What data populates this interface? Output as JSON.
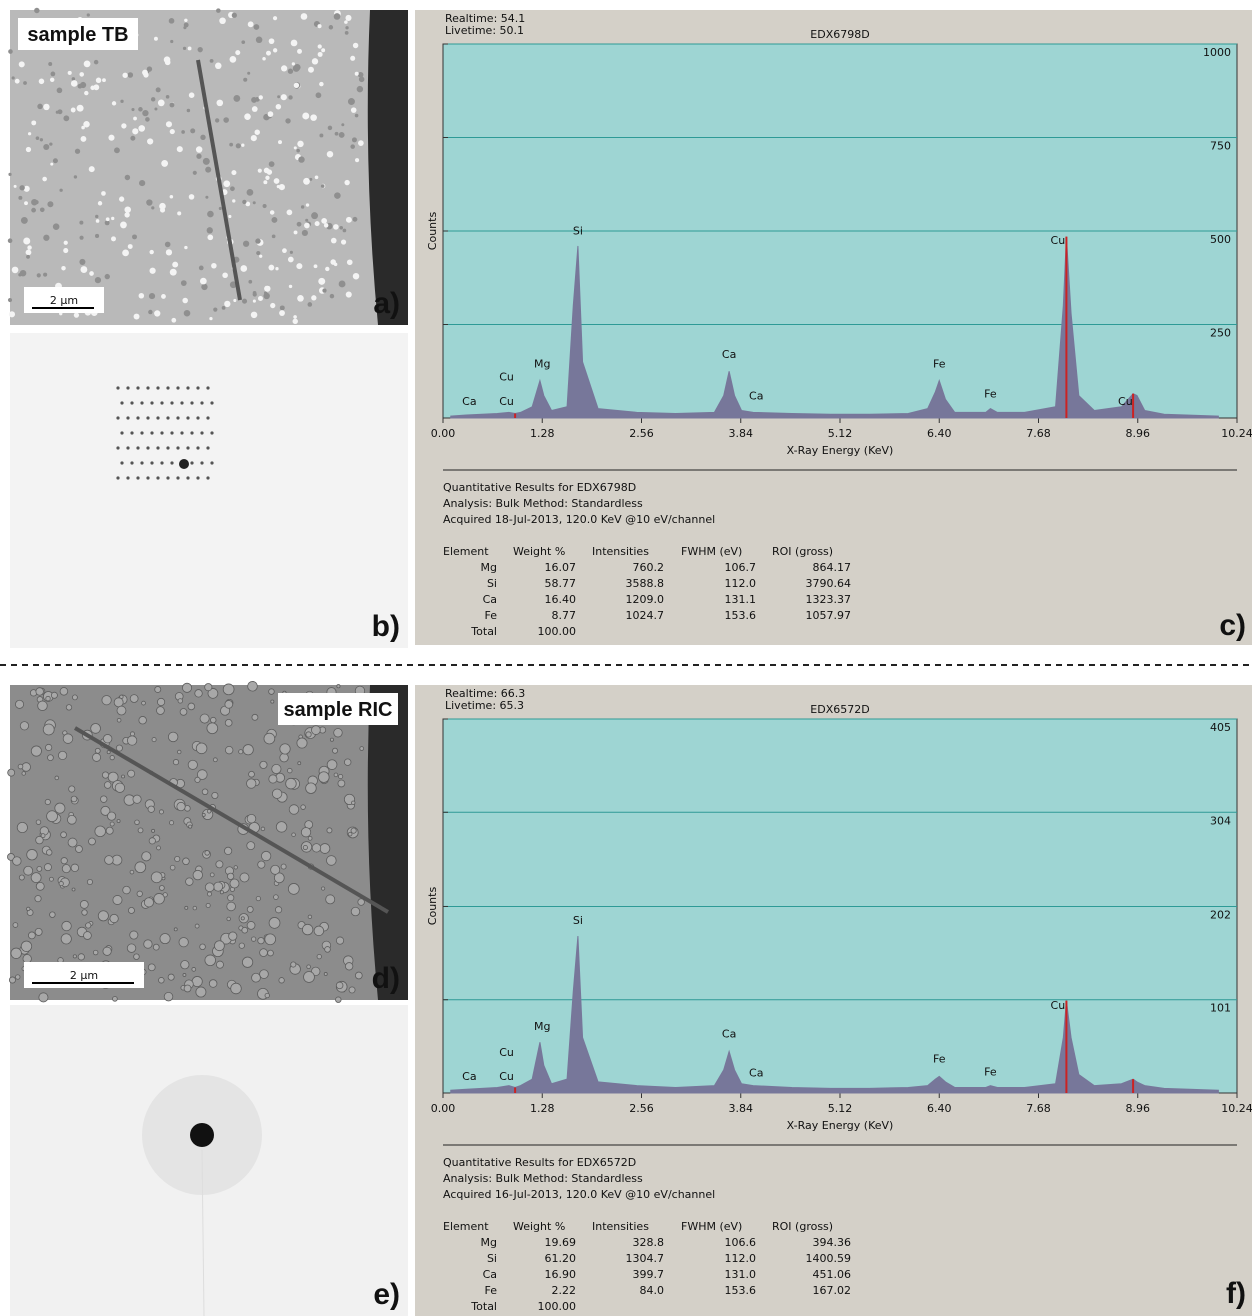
{
  "panels": [
    {
      "caption": "sample TB",
      "scale_bar": "2 µm",
      "label": "a)"
    },
    {
      "label": "b)"
    },
    {
      "caption": "sample RIC",
      "scale_bar": "2 µm",
      "label": "d)"
    },
    {
      "label": "e)"
    }
  ],
  "chart_data": [
    {
      "type": "line",
      "header": [
        "Realtime: 54.1",
        "Livetime: 50.1"
      ],
      "title": "EDX6798D",
      "xlabel": "X-Ray Energy (KeV)",
      "ylabel": "Counts",
      "panel_label": "c)",
      "xlim": [
        0,
        10.24
      ],
      "ylim": [
        0,
        1000
      ],
      "xticks": [
        {
          "value": 0,
          "label": "0.00"
        },
        {
          "value": 1.28,
          "label": "1.28"
        },
        {
          "value": 2.56,
          "label": "2.56"
        },
        {
          "value": 3.84,
          "label": "3.84"
        },
        {
          "value": 5.12,
          "label": "5.12"
        },
        {
          "value": 6.4,
          "label": "6.40"
        },
        {
          "value": 7.68,
          "label": "7.68"
        },
        {
          "value": 8.96,
          "label": "8.96"
        },
        {
          "value": 10.24,
          "label": "10.24"
        }
      ],
      "yticks": [
        250,
        500,
        750,
        1000
      ],
      "grid": true,
      "color": "#77779a",
      "marker_color": "#cc2222",
      "x": [
        0.1,
        0.3,
        0.5,
        0.7,
        0.85,
        0.93,
        1.0,
        1.15,
        1.25,
        1.3,
        1.4,
        1.6,
        1.68,
        1.74,
        1.8,
        2.0,
        2.5,
        3.0,
        3.5,
        3.62,
        3.69,
        3.76,
        3.85,
        4.0,
        4.5,
        5.0,
        5.5,
        6.0,
        6.25,
        6.35,
        6.4,
        6.48,
        6.6,
        7.0,
        7.06,
        7.15,
        7.5,
        7.9,
        8.0,
        8.04,
        8.1,
        8.2,
        8.4,
        8.75,
        8.9,
        8.95,
        9.05,
        9.3,
        10.0
      ],
      "values": [
        5,
        8,
        10,
        12,
        15,
        12,
        15,
        30,
        100,
        60,
        20,
        30,
        300,
        460,
        150,
        25,
        15,
        12,
        15,
        60,
        125,
        60,
        20,
        15,
        12,
        10,
        10,
        12,
        25,
        70,
        100,
        50,
        15,
        15,
        25,
        15,
        15,
        30,
        300,
        485,
        280,
        60,
        20,
        30,
        65,
        60,
        20,
        10,
        5
      ],
      "markers": [
        0.93,
        8.04,
        8.9
      ],
      "peak_labels": [
        {
          "text": "Ca",
          "x": 0.34,
          "y": 35
        },
        {
          "text": "Cu",
          "x": 0.82,
          "y": 35
        },
        {
          "text": "Cu",
          "x": 0.82,
          "y": 100
        },
        {
          "text": "Mg",
          "x": 1.28,
          "y": 135
        },
        {
          "text": "Si",
          "x": 1.74,
          "y": 490
        },
        {
          "text": "Ca",
          "x": 3.69,
          "y": 160
        },
        {
          "text": "Ca",
          "x": 4.04,
          "y": 50
        },
        {
          "text": "Fe",
          "x": 6.4,
          "y": 135
        },
        {
          "text": "Fe",
          "x": 7.06,
          "y": 55
        },
        {
          "text": "Cu",
          "x": 7.93,
          "y": 465
        },
        {
          "text": "Cu",
          "x": 8.8,
          "y": 35
        }
      ]
    },
    {
      "type": "line",
      "header": [
        "Realtime: 66.3",
        "Livetime: 65.3"
      ],
      "title": "EDX6572D",
      "xlabel": "X-Ray Energy (KeV)",
      "ylabel": "Counts",
      "panel_label": "f)",
      "xlim": [
        0,
        10.24
      ],
      "ylim": [
        0,
        405
      ],
      "xticks": [
        {
          "value": 0,
          "label": "0.00"
        },
        {
          "value": 1.28,
          "label": "1.28"
        },
        {
          "value": 2.56,
          "label": "2.56"
        },
        {
          "value": 3.84,
          "label": "3.84"
        },
        {
          "value": 5.12,
          "label": "5.12"
        },
        {
          "value": 6.4,
          "label": "6.40"
        },
        {
          "value": 7.68,
          "label": "7.68"
        },
        {
          "value": 8.96,
          "label": "8.96"
        },
        {
          "value": 10.24,
          "label": "10.24"
        }
      ],
      "yticks": [
        101,
        202,
        304,
        405
      ],
      "grid": true,
      "color": "#77779a",
      "marker_color": "#cc2222",
      "x": [
        0.1,
        0.3,
        0.5,
        0.7,
        0.85,
        0.93,
        1.0,
        1.15,
        1.25,
        1.3,
        1.4,
        1.6,
        1.68,
        1.74,
        1.8,
        2.0,
        2.5,
        3.0,
        3.5,
        3.62,
        3.69,
        3.76,
        3.85,
        4.0,
        4.5,
        5.0,
        5.5,
        6.0,
        6.25,
        6.35,
        6.4,
        6.48,
        6.6,
        7.0,
        7.06,
        7.15,
        7.5,
        7.9,
        8.0,
        8.04,
        8.1,
        8.2,
        8.4,
        8.75,
        8.9,
        8.95,
        9.05,
        9.3,
        10.0
      ],
      "values": [
        3,
        4,
        5,
        6,
        8,
        6,
        8,
        15,
        55,
        30,
        10,
        15,
        110,
        170,
        60,
        12,
        8,
        6,
        8,
        25,
        45,
        25,
        10,
        8,
        6,
        5,
        5,
        6,
        8,
        15,
        18,
        12,
        6,
        6,
        8,
        6,
        6,
        10,
        60,
        100,
        60,
        20,
        8,
        10,
        15,
        12,
        8,
        5,
        3
      ],
      "markers": [
        0.93,
        8.04,
        8.9
      ],
      "peak_labels": [
        {
          "text": "Ca",
          "x": 0.34,
          "y": 14
        },
        {
          "text": "Cu",
          "x": 0.82,
          "y": 14
        },
        {
          "text": "Cu",
          "x": 0.82,
          "y": 40
        },
        {
          "text": "Mg",
          "x": 1.28,
          "y": 68
        },
        {
          "text": "Si",
          "x": 1.74,
          "y": 183
        },
        {
          "text": "Ca",
          "x": 3.69,
          "y": 60
        },
        {
          "text": "Ca",
          "x": 4.04,
          "y": 18
        },
        {
          "text": "Fe",
          "x": 6.4,
          "y": 33
        },
        {
          "text": "Fe",
          "x": 7.06,
          "y": 19
        },
        {
          "text": "Cu",
          "x": 7.93,
          "y": 91
        }
      ]
    }
  ],
  "results": [
    {
      "lines": [
        "Quantitative Results for EDX6798D",
        "Analysis: Bulk    Method: Standardless",
        "Acquired 18-Jul-2013, 120.0 KeV @10 eV/channel"
      ],
      "columns": [
        "Element",
        "Weight %",
        "Intensities",
        "FWHM (eV)",
        "ROI (gross)"
      ],
      "rows": [
        [
          "Mg",
          "16.07",
          "760.2",
          "106.7",
          "864.17"
        ],
        [
          "Si",
          "58.77",
          "3588.8",
          "112.0",
          "3790.64"
        ],
        [
          "Ca",
          "16.40",
          "1209.0",
          "131.1",
          "1323.37"
        ],
        [
          "Fe",
          "8.77",
          "1024.7",
          "153.6",
          "1057.97"
        ],
        [
          "Total",
          "100.00"
        ]
      ]
    },
    {
      "lines": [
        "Quantitative Results for EDX6572D",
        "Analysis: Bulk    Method: Standardless",
        "Acquired 16-Jul-2013, 120.0 KeV @10 eV/channel"
      ],
      "columns": [
        "Element",
        "Weight %",
        "Intensities",
        "FWHM (eV)",
        "ROI (gross)"
      ],
      "rows": [
        [
          "Mg",
          "19.69",
          "328.8",
          "106.6",
          "394.36"
        ],
        [
          "Si",
          "61.20",
          "1304.7",
          "112.0",
          "1400.59"
        ],
        [
          "Ca",
          "16.90",
          "399.7",
          "131.0",
          "451.06"
        ],
        [
          "Fe",
          "2.22",
          "84.0",
          "153.6",
          "167.02"
        ],
        [
          "Total",
          "100.00"
        ]
      ]
    }
  ]
}
